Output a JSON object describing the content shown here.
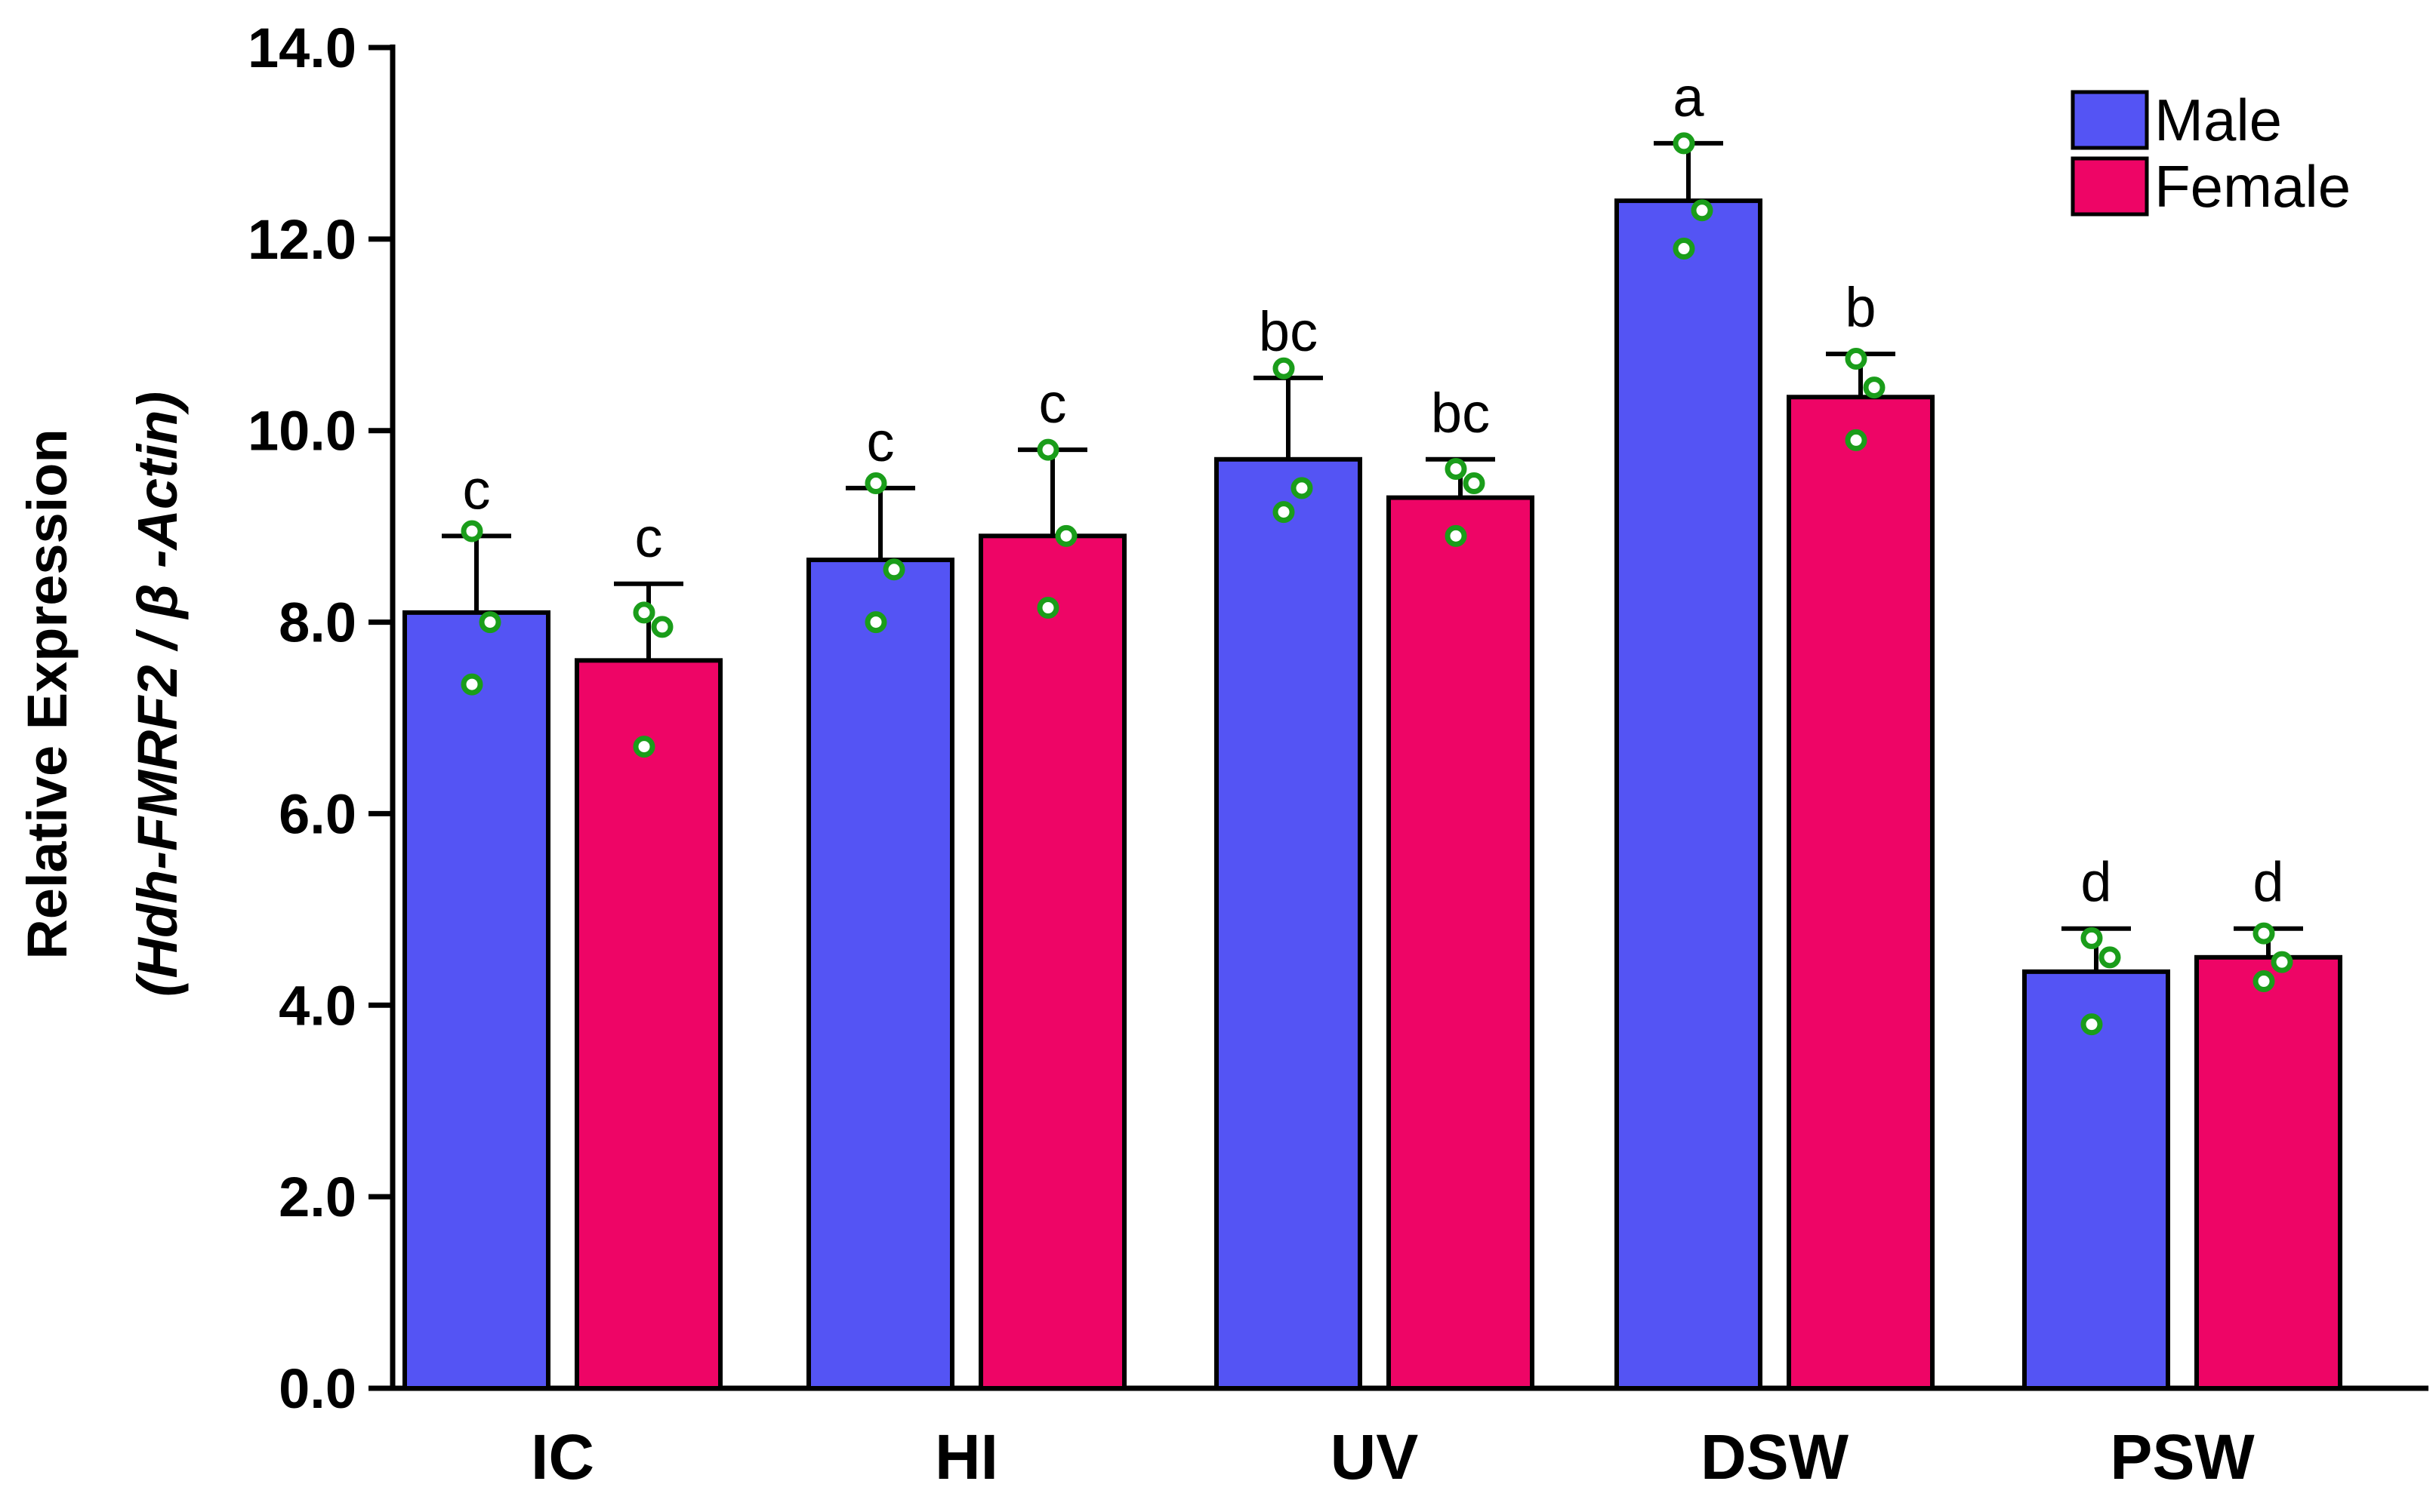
{
  "chart_data": {
    "type": "bar",
    "title": "",
    "xlabel": "",
    "ylabel_line1": "Relative Expression",
    "ylabel_line2": "(Hdh-FMRF2 / β -Actin)",
    "ylim": [
      0,
      14
    ],
    "yticks": [
      "0.0",
      "2.0",
      "4.0",
      "6.0",
      "8.0",
      "10.0",
      "12.0",
      "14.0"
    ],
    "categories": [
      "IC",
      "HI",
      "UV",
      "DSW",
      "PSW"
    ],
    "legend_position": "top-right",
    "series": [
      {
        "name": "Male",
        "color": "#5454f4",
        "values": [
          8.1,
          8.65,
          9.7,
          12.4,
          4.35
        ],
        "errors": [
          0.8,
          0.75,
          0.85,
          0.6,
          0.45
        ],
        "points": [
          [
            8.95,
            8.0,
            7.35
          ],
          [
            9.45,
            8.55,
            8.0
          ],
          [
            10.65,
            9.4,
            9.15
          ],
          [
            13.0,
            12.3,
            11.9
          ],
          [
            4.7,
            4.5,
            3.8
          ]
        ],
        "significance": [
          "c",
          "c",
          "bc",
          "a",
          "d"
        ]
      },
      {
        "name": "Female",
        "color": "#ee0566",
        "values": [
          7.6,
          8.9,
          9.3,
          10.35,
          4.5
        ],
        "errors": [
          0.8,
          0.9,
          0.4,
          0.45,
          0.3
        ],
        "points": [
          [
            8.1,
            7.95,
            6.7
          ],
          [
            9.8,
            8.9,
            8.15
          ],
          [
            9.6,
            9.45,
            8.9
          ],
          [
            10.75,
            10.45,
            9.9
          ],
          [
            4.75,
            4.45,
            4.25
          ]
        ],
        "significance": [
          "c",
          "c",
          "bc",
          "b",
          "d"
        ]
      }
    ],
    "point_color": "#1a9d1a"
  }
}
